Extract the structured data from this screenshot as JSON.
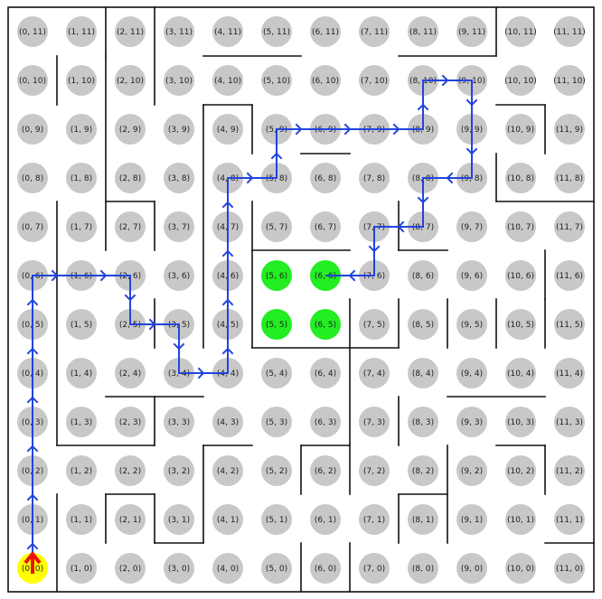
{
  "maze": {
    "cols": 12,
    "rows": 12,
    "start_cell": [
      0,
      0
    ],
    "goal_cells": [
      [
        5,
        6
      ],
      [
        6,
        6
      ],
      [
        5,
        5
      ],
      [
        6,
        5
      ]
    ],
    "path": [
      [
        0,
        0
      ],
      [
        0,
        1
      ],
      [
        0,
        2
      ],
      [
        0,
        3
      ],
      [
        0,
        4
      ],
      [
        0,
        5
      ],
      [
        0,
        6
      ],
      [
        1,
        6
      ],
      [
        2,
        6
      ],
      [
        2,
        5
      ],
      [
        3,
        5
      ],
      [
        3,
        4
      ],
      [
        4,
        4
      ],
      [
        4,
        5
      ],
      [
        4,
        6
      ],
      [
        4,
        7
      ],
      [
        4,
        8
      ],
      [
        5,
        8
      ],
      [
        5,
        9
      ],
      [
        6,
        9
      ],
      [
        7,
        9
      ],
      [
        8,
        9
      ],
      [
        8,
        10
      ],
      [
        9,
        10
      ],
      [
        9,
        9
      ],
      [
        9,
        8
      ],
      [
        8,
        8
      ],
      [
        8,
        7
      ],
      [
        7,
        7
      ],
      [
        7,
        6
      ],
      [
        6,
        6
      ]
    ],
    "cells": [
      {
        "label": "(0, 11)"
      },
      {
        "label": "(1, 11)"
      },
      {
        "label": "(2, 11)"
      },
      {
        "label": "(3, 11)"
      },
      {
        "label": "(4, 11)"
      },
      {
        "label": "(5, 11)"
      },
      {
        "label": "(6, 11)"
      },
      {
        "label": "(7, 11)"
      },
      {
        "label": "(8, 11)"
      },
      {
        "label": "(9, 11)"
      },
      {
        "label": "(10, 11)"
      },
      {
        "label": "(11, 11)"
      },
      {
        "label": "(0, 10)"
      },
      {
        "label": "(1, 10)"
      },
      {
        "label": "(2, 10)"
      },
      {
        "label": "(3, 10)"
      },
      {
        "label": "(4, 10)"
      },
      {
        "label": "(5, 10)"
      },
      {
        "label": "(6, 10)"
      },
      {
        "label": "(7, 10)"
      },
      {
        "label": "(8, 10)"
      },
      {
        "label": "(9, 10)"
      },
      {
        "label": "(10, 10)"
      },
      {
        "label": "(11, 10)"
      },
      {
        "label": "(0, 9)"
      },
      {
        "label": "(1, 9)"
      },
      {
        "label": "(2, 9)"
      },
      {
        "label": "(3, 9)"
      },
      {
        "label": "(4, 9)"
      },
      {
        "label": "(5, 9)"
      },
      {
        "label": "(6, 9)"
      },
      {
        "label": "(7, 9)"
      },
      {
        "label": "(8, 9)"
      },
      {
        "label": "(9, 9)"
      },
      {
        "label": "(10, 9)"
      },
      {
        "label": "(11, 9)"
      },
      {
        "label": "(0, 8)"
      },
      {
        "label": "(1, 8)"
      },
      {
        "label": "(2, 8)"
      },
      {
        "label": "(3, 8)"
      },
      {
        "label": "(4, 8)"
      },
      {
        "label": "(5, 8)"
      },
      {
        "label": "(6, 8)"
      },
      {
        "label": "(7, 8)"
      },
      {
        "label": "(8, 8)"
      },
      {
        "label": "(9, 8)"
      },
      {
        "label": "(10, 8)"
      },
      {
        "label": "(11, 8)"
      },
      {
        "label": "(0, 7)"
      },
      {
        "label": "(1, 7)"
      },
      {
        "label": "(2, 7)"
      },
      {
        "label": "(3, 7)"
      },
      {
        "label": "(4, 7)"
      },
      {
        "label": "(5, 7)"
      },
      {
        "label": "(6, 7)"
      },
      {
        "label": "(7, 7)"
      },
      {
        "label": "(8, 7)"
      },
      {
        "label": "(9, 7)"
      },
      {
        "label": "(10, 7)"
      },
      {
        "label": "(11, 7)"
      },
      {
        "label": "(0, 6)"
      },
      {
        "label": "(1, 6)"
      },
      {
        "label": "(2, 6)"
      },
      {
        "label": "(3, 6)"
      },
      {
        "label": "(4, 6)"
      },
      {
        "label": "(5, 6)"
      },
      {
        "label": "(6, 6)"
      },
      {
        "label": "(7, 6)"
      },
      {
        "label": "(8, 6)"
      },
      {
        "label": "(9, 6)"
      },
      {
        "label": "(10, 6)"
      },
      {
        "label": "(11, 6)"
      },
      {
        "label": "(0, 5)"
      },
      {
        "label": "(1, 5)"
      },
      {
        "label": "(2, 5)"
      },
      {
        "label": "(3, 5)"
      },
      {
        "label": "(4, 5)"
      },
      {
        "label": "(5, 5)"
      },
      {
        "label": "(6, 5)"
      },
      {
        "label": "(7, 5)"
      },
      {
        "label": "(8, 5)"
      },
      {
        "label": "(9, 5)"
      },
      {
        "label": "(10, 5)"
      },
      {
        "label": "(11, 5)"
      },
      {
        "label": "(0, 4)"
      },
      {
        "label": "(1, 4)"
      },
      {
        "label": "(2, 4)"
      },
      {
        "label": "(3, 4)"
      },
      {
        "label": "(4, 4)"
      },
      {
        "label": "(5, 4)"
      },
      {
        "label": "(6, 4)"
      },
      {
        "label": "(7, 4)"
      },
      {
        "label": "(8, 4)"
      },
      {
        "label": "(9, 4)"
      },
      {
        "label": "(10, 4)"
      },
      {
        "label": "(11, 4)"
      },
      {
        "label": "(0, 3)"
      },
      {
        "label": "(1, 3)"
      },
      {
        "label": "(2, 3)"
      },
      {
        "label": "(3, 3)"
      },
      {
        "label": "(4, 3)"
      },
      {
        "label": "(5, 3)"
      },
      {
        "label": "(6, 3)"
      },
      {
        "label": "(7, 3)"
      },
      {
        "label": "(8, 3)"
      },
      {
        "label": "(9, 3)"
      },
      {
        "label": "(10, 3)"
      },
      {
        "label": "(11, 3)"
      },
      {
        "label": "(0, 2)"
      },
      {
        "label": "(1, 2)"
      },
      {
        "label": "(2, 2)"
      },
      {
        "label": "(3, 2)"
      },
      {
        "label": "(4, 2)"
      },
      {
        "label": "(5, 2)"
      },
      {
        "label": "(6, 2)"
      },
      {
        "label": "(7, 2)"
      },
      {
        "label": "(8, 2)"
      },
      {
        "label": "(9, 2)"
      },
      {
        "label": "(10, 2)"
      },
      {
        "label": "(11, 2)"
      },
      {
        "label": "(0, 1)"
      },
      {
        "label": "(1, 1)"
      },
      {
        "label": "(2, 1)"
      },
      {
        "label": "(3, 1)"
      },
      {
        "label": "(4, 1)"
      },
      {
        "label": "(5, 1)"
      },
      {
        "label": "(6, 1)"
      },
      {
        "label": "(7, 1)"
      },
      {
        "label": "(8, 1)"
      },
      {
        "label": "(9, 1)"
      },
      {
        "label": "(10, 1)"
      },
      {
        "label": "(11, 1)"
      },
      {
        "label": "(0, 0)"
      },
      {
        "label": "(1, 0)"
      },
      {
        "label": "(2, 0)"
      },
      {
        "label": "(3, 0)"
      },
      {
        "label": "(4, 0)"
      },
      {
        "label": "(5, 0)"
      },
      {
        "label": "(6, 0)"
      },
      {
        "label": "(7, 0)"
      },
      {
        "label": "(8, 0)"
      },
      {
        "label": "(9, 0)"
      },
      {
        "label": "(10, 0)"
      },
      {
        "label": "(11, 0)"
      }
    ],
    "colors": {
      "cell": "#c8c8c8",
      "goal": "#22ee22",
      "start": "#ffff00",
      "path": "#2244dd",
      "start_arrow": "#ee1111",
      "wall": "#111111"
    }
  }
}
